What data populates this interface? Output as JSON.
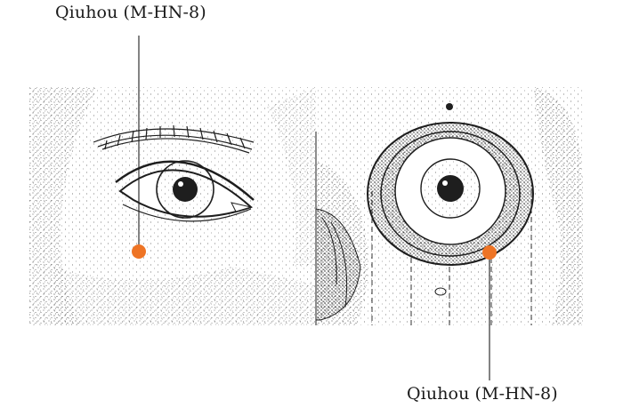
{
  "labels": {
    "top": "Qiuhou (M-HN-8)",
    "bottom": "Qiuhou (M-HN-8)"
  },
  "colors": {
    "acupoint": "#ee7425",
    "ink": "#1e1e1e",
    "background": "#ffffff"
  },
  "figure": {
    "left_panel": "face-with-eye",
    "right_panel": "skull-orbit-with-eyeball"
  }
}
